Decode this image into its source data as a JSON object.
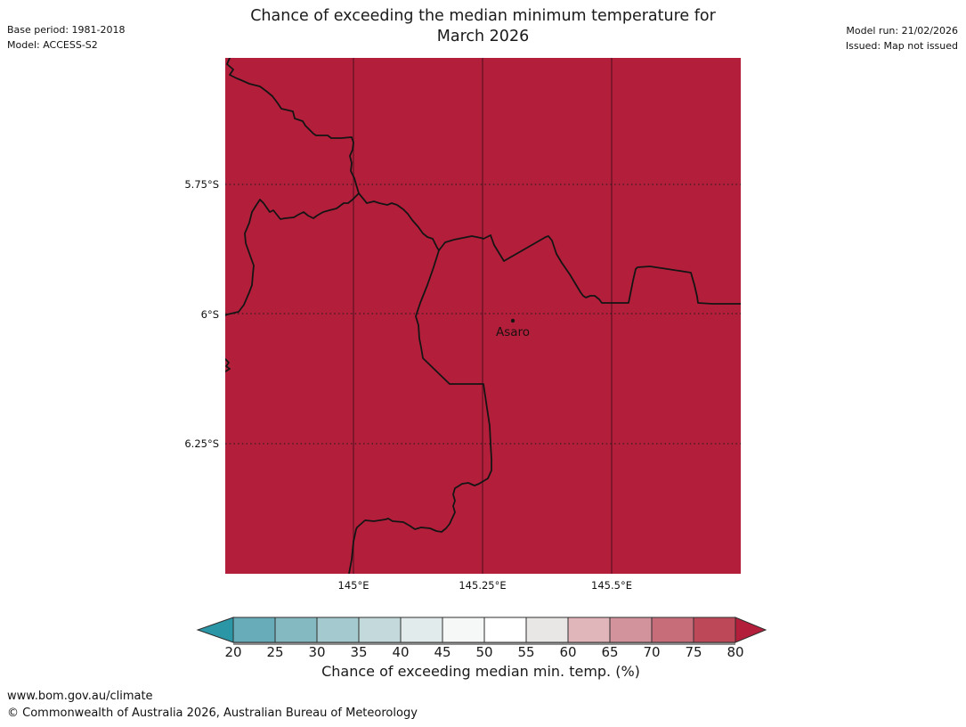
{
  "header": {
    "title_line1": "Chance of exceeding the median minimum temperature for",
    "title_line2": "March 2026",
    "base_period": "Base period: 1981-2018",
    "model": "Model: ACCESS-S2",
    "model_run": "Model run: 21/02/2026",
    "issued": "Issued: Map not issued"
  },
  "map": {
    "fill_color": "#b31f3b",
    "boundary_color": "#141414",
    "meridian_color": "#701328",
    "place": {
      "name": "Asaro"
    },
    "lat_ticks": [
      "5.75°S",
      "6°S",
      "6.25°S"
    ],
    "lon_ticks": [
      "145°E",
      "145.25°E",
      "145.5°E"
    ]
  },
  "colorbar": {
    "caption": "Chance of exceeding median min. temp. (%)",
    "ticks": [
      "20",
      "25",
      "30",
      "35",
      "40",
      "45",
      "50",
      "55",
      "60",
      "65",
      "70",
      "75",
      "80"
    ],
    "cell_colors": [
      "#68acb9",
      "#85b9c2",
      "#a4c9ce",
      "#c4d9db",
      "#e2ebec",
      "#f6f8f8",
      "#ffffff",
      "#e9e6e6",
      "#e1b6bb",
      "#d3939c",
      "#c76d79",
      "#bd4858"
    ],
    "under_arrow_color": "#2b96a6",
    "over_arrow_color": "#b31f3b",
    "outline_color": "#2e2e2e",
    "shadow_color": "#8e8e8e"
  },
  "footer": {
    "url": "www.bom.gov.au/climate",
    "copyright": "© Commonwealth of Australia 2026, Australian Bureau of Meteorology"
  },
  "chart_data": {
    "type": "heatmap",
    "title": "Chance of exceeding the median minimum temperature for March 2026",
    "value_field": "Chance of exceeding median min. temp. (%)",
    "lat_axis_deg": {
      "ticks_south": [
        5.75,
        6.0,
        6.25
      ],
      "range_south": [
        5.5,
        6.5
      ]
    },
    "lon_axis_deg": {
      "ticks_east": [
        145.0,
        145.25,
        145.5
      ],
      "range_east": [
        144.75,
        145.75
      ]
    },
    "scale_ticks_percent": [
      20,
      25,
      30,
      35,
      40,
      45,
      50,
      55,
      60,
      65,
      70,
      75,
      80
    ],
    "scale_open_ended": true,
    "map_values": "entire displayed region shaded in the > 80 % class (dark crimson)",
    "places": [
      {
        "name": "Asaro",
        "lat_deg_south": 5.99,
        "lon_deg_east": 145.31
      }
    ],
    "grid": "dotted parallels, solid meridians",
    "legend_position": "bottom"
  }
}
